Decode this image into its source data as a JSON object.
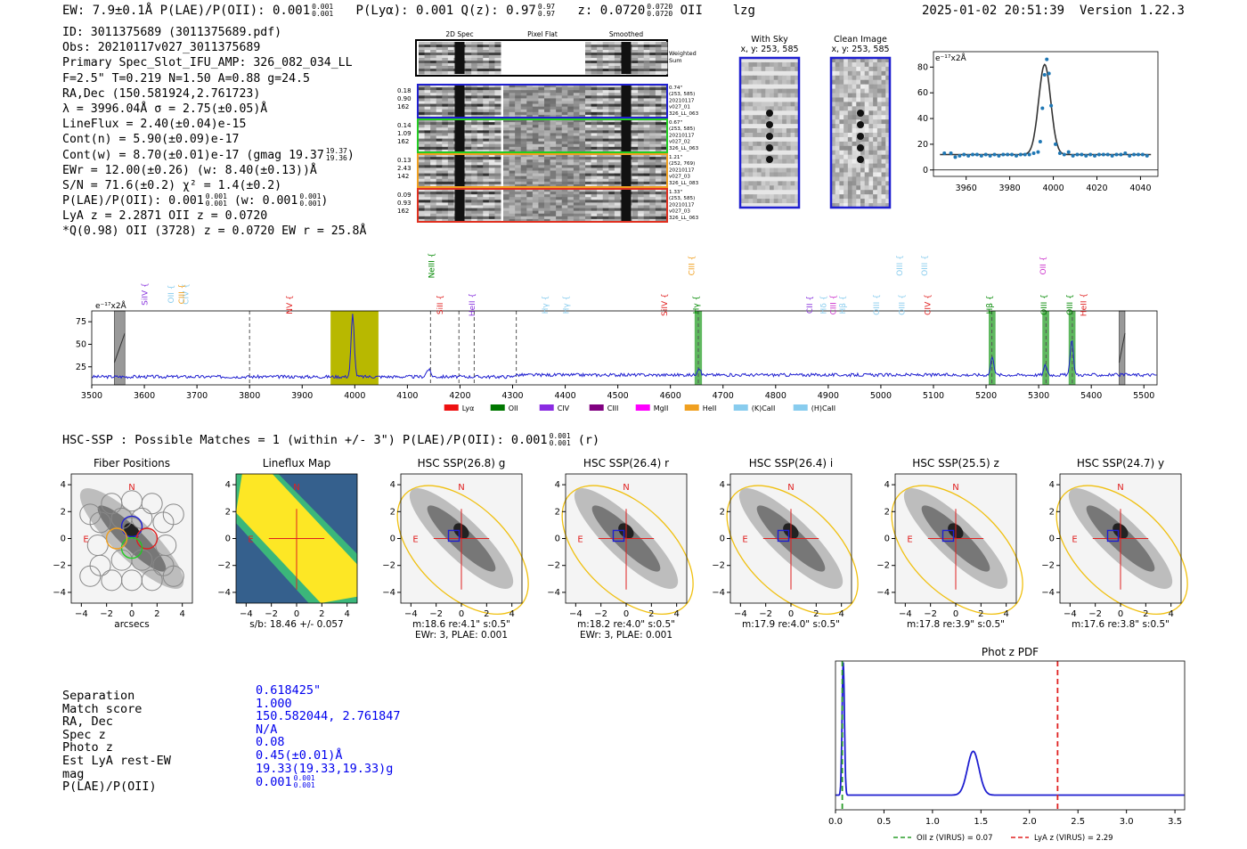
{
  "header": {
    "left": "EW: 7.9±0.1Å  P(LAE)/P(OII): 0.001",
    "left_frac": [
      "0.001",
      "0.001"
    ],
    "pl": "P(Lyα): 0.001  Q(z): 0.97",
    "ql_frac": [
      "0.97",
      "0.97"
    ],
    "z": "z: 0.0720",
    "z_frac": [
      "0.0720",
      "0.0720"
    ],
    "z_tail": "OII    lzg",
    "datetime": "2025-01-02 20:51:39",
    "version": "Version 1.22.3"
  },
  "info": {
    "id": "ID: 3011375689 (3011375689.pdf)",
    "obs": "Obs: 20210117v027_3011375689",
    "primary": "Primary Spec_Slot_IFU_AMP: 326_082_034_LL",
    "f": "F=2.5\"  T=0.219  N=1.50  A=0.88  g=24.5",
    "radec": "RA,Dec (150.581924,2.761723)",
    "lambda": "λ = 3996.04Å  σ = 2.75(±0.05)Å",
    "lineflux": "LineFlux = 2.40(±0.04)e-15",
    "contn": "Cont(n) = 5.90(±0.09)e-17",
    "contw": "Cont(w) = 8.70(±0.01)e-17 (gmag 19.37",
    "contw_frac": [
      "19.37",
      "19.36"
    ],
    "ewr": "EWr = 12.00(±0.26) (w: 8.40(±0.13))Å",
    "sn": "S/N = 71.6(±0.2)  χ² = 1.4(±0.2)",
    "plae": "P(LAE)/P(OII): 0.001",
    "plae_frac": [
      "0.001",
      "0.001"
    ],
    "plae_w": "(w: 0.001",
    "plae_w_frac": [
      "0.001",
      "0.001"
    ],
    "lya": "LyA z = 2.2871  OII z = 0.0720",
    "q": "*Q(0.98) OII (3728) z = 0.0720  EW r = 25.8Å"
  },
  "cutouts": {
    "headers": [
      "2D Spec",
      "Pixel Flat",
      "Smoothed"
    ],
    "weighted_label": "Weighted\nSum",
    "rows": [
      {
        "color": "#1f1fd0",
        "vals": [
          "0.18",
          "0.90",
          "162"
        ],
        "notes": [
          "0.74\"",
          "(253, 585)",
          "20210117",
          "v027_01",
          "326_LL_063"
        ]
      },
      {
        "color": "#22cc22",
        "vals": [
          "0.14",
          "1.09",
          "162"
        ],
        "notes": [
          "0.67\"",
          "(253, 585)",
          "20210117",
          "v027_02",
          "326_LL_063"
        ]
      },
      {
        "color": "#f0a020",
        "vals": [
          "0.13",
          "2.43",
          "142"
        ],
        "notes": [
          "1.21\"",
          "(252, 769)",
          "20210117",
          "v027_03",
          "326_LL_083"
        ]
      },
      {
        "color": "#e03020",
        "vals": [
          "0.09",
          "0.93",
          "162"
        ],
        "notes": [
          "1.33\"",
          "(253, 585)",
          "20210117",
          "v027_03",
          "326_LL_063"
        ]
      }
    ],
    "with_sky": {
      "title": "With Sky",
      "coords": "x, y: 253, 585"
    },
    "clean": {
      "title": "Clean Image",
      "coords": "x, y: 253, 585"
    }
  },
  "chart_data": [
    {
      "type": "line",
      "name": "emission-line-fit",
      "ylabel": "e⁻¹⁷x2Å",
      "xlim": [
        3945,
        4048
      ],
      "ylim": [
        -5,
        92
      ],
      "xticks": [
        3960,
        3980,
        4000,
        4020,
        4040
      ],
      "yticks": [
        0,
        20,
        40,
        60,
        80
      ],
      "points_x": [
        3950,
        3953,
        3955,
        3957,
        3959,
        3961,
        3963,
        3965,
        3967,
        3969,
        3971,
        3973,
        3975,
        3977,
        3979,
        3981,
        3983,
        3985,
        3987,
        3989,
        3991,
        3993,
        3994,
        3995,
        3996,
        3997,
        3998,
        3999,
        4001,
        4003,
        4005,
        4007,
        4009,
        4011,
        4013,
        4015,
        4017,
        4019,
        4021,
        4023,
        4025,
        4027,
        4029,
        4031,
        4033,
        4035,
        4037,
        4039,
        4041,
        4043
      ],
      "points_y": [
        13,
        13,
        10,
        11,
        12,
        11,
        12,
        12,
        11,
        12,
        11,
        12,
        11,
        12,
        12,
        12,
        11,
        12,
        12,
        12,
        13,
        14,
        22,
        48,
        74,
        86,
        75,
        50,
        20,
        13,
        12,
        14,
        11,
        12,
        12,
        11,
        12,
        11,
        12,
        12,
        12,
        11,
        12,
        12,
        13,
        11,
        12,
        12,
        12,
        11
      ],
      "fit_center": 3996.04,
      "fit_sigma": 2.75,
      "fit_amp": 70,
      "fit_cont": 12
    },
    {
      "type": "line",
      "name": "full-spectrum",
      "ylabel": "e⁻¹⁷x2Å",
      "xlim": [
        3500,
        5525
      ],
      "ylim": [
        5,
        87
      ],
      "xticks": [
        3500,
        3600,
        3700,
        3800,
        3900,
        4000,
        4100,
        4200,
        4300,
        4400,
        4500,
        4600,
        4700,
        4800,
        4900,
        5000,
        5100,
        5200,
        5300,
        5400,
        5500
      ],
      "yticks": [
        25,
        50,
        75
      ],
      "peaks": [
        {
          "x": 3996,
          "y": 83,
          "w": 3
        },
        {
          "x": 4654,
          "y": 22,
          "w": 3
        },
        {
          "x": 5212,
          "y": 35,
          "w": 3
        },
        {
          "x": 5313,
          "y": 25,
          "w": 3
        },
        {
          "x": 5363,
          "y": 52,
          "w": 3
        },
        {
          "x": 4140,
          "y": 22,
          "w": 4
        }
      ],
      "continuum": 14,
      "highlight_band": [
        3954,
        4045
      ],
      "green_bands": [
        [
          4646,
          4660
        ],
        [
          5205,
          5218
        ],
        [
          5307,
          5320
        ],
        [
          5357,
          5370
        ]
      ],
      "gray_bands": [
        [
          3543,
          3563
        ],
        [
          5453,
          5464
        ]
      ],
      "dashed_lines": [
        3800,
        4144,
        4198,
        4227,
        4307,
        4653,
        5211,
        5314,
        5364
      ],
      "line_labels": [
        {
          "label": "SiIV",
          "x": 3606,
          "row": 0,
          "color": "#8833dd"
        },
        {
          "label": "OII",
          "x": 3656,
          "row": 0,
          "color": "#88ccee"
        },
        {
          "label": "CIV",
          "x": 3684,
          "row": 0,
          "color": "#88ccee"
        },
        {
          "label": "CIII",
          "x": 3676,
          "row": 0,
          "color": "#f0a020"
        },
        {
          "label": "NV",
          "x": 3881,
          "row": 1,
          "color": "#e02020"
        },
        {
          "label": "NeIII",
          "x": 4151,
          "row": 2,
          "color": "#008800"
        },
        {
          "label": "SiII",
          "x": 4167,
          "row": 1,
          "color": "#e02020"
        },
        {
          "label": "HeII",
          "x": 4228,
          "row": 1,
          "color": "#8833dd"
        },
        {
          "label": "Hγ",
          "x": 4367,
          "row": 1,
          "color": "#88ccee"
        },
        {
          "label": "Hγ",
          "x": 4407,
          "row": 1,
          "color": "#88ccee"
        },
        {
          "label": "SiIV",
          "x": 4594,
          "row": 1,
          "color": "#e02020"
        },
        {
          "label": "CIII",
          "x": 4645,
          "row": 2,
          "color": "#f0a020"
        },
        {
          "label": "Hγ",
          "x": 4654,
          "row": 1,
          "color": "#008800"
        },
        {
          "label": "CII",
          "x": 4870,
          "row": 1,
          "color": "#8833dd"
        },
        {
          "label": "Hδ",
          "x": 4896,
          "row": 1,
          "color": "#88ccee"
        },
        {
          "label": "CIII",
          "x": 4915,
          "row": 1,
          "color": "#cc33cc"
        },
        {
          "label": "Hβ",
          "x": 4932,
          "row": 1,
          "color": "#88ccee"
        },
        {
          "label": "OIII",
          "x": 4997,
          "row": 1,
          "color": "#88ccee"
        },
        {
          "label": "OIII",
          "x": 5045,
          "row": 1,
          "color": "#88ccee"
        },
        {
          "label": "OIII",
          "x": 5041,
          "row": 2,
          "color": "#88ccee"
        },
        {
          "label": "OIII",
          "x": 5088,
          "row": 2,
          "color": "#88ccee"
        },
        {
          "label": "CIV",
          "x": 5094,
          "row": 1,
          "color": "#e02020"
        },
        {
          "label": "Hβ",
          "x": 5212,
          "row": 1,
          "color": "#008800"
        },
        {
          "label": "OII",
          "x": 5313,
          "row": 2,
          "color": "#cc33cc"
        },
        {
          "label": "OIII",
          "x": 5315,
          "row": 1,
          "color": "#008800"
        },
        {
          "label": "OIII",
          "x": 5364,
          "row": 1,
          "color": "#008800"
        },
        {
          "label": "HeII",
          "x": 5390,
          "row": 1,
          "color": "#e02020"
        }
      ],
      "legend": [
        {
          "label": "Lyα",
          "color": "#ee1111"
        },
        {
          "label": "OII",
          "color": "#007700"
        },
        {
          "label": "CIV",
          "color": "#8a2be2"
        },
        {
          "label": "CIII",
          "color": "#800080"
        },
        {
          "label": "MgII",
          "color": "#ff00ff"
        },
        {
          "label": "HeII",
          "color": "#f0a020"
        },
        {
          "label": "(K)CaII",
          "color": "#88ccee"
        },
        {
          "label": "(H)CaII",
          "color": "#88ccee"
        }
      ]
    },
    {
      "type": "line",
      "name": "photz-pdf",
      "title": "Phot z PDF",
      "xlim": [
        0,
        3.6
      ],
      "xticks": [
        0.0,
        0.5,
        1.0,
        1.5,
        2.0,
        2.5,
        3.0,
        3.5
      ],
      "peaks": [
        {
          "x": 0.08,
          "h": 1.0,
          "w": 0.012
        },
        {
          "x": 1.42,
          "h": 0.33,
          "w": 0.06
        }
      ],
      "vlines": [
        {
          "x": 0.07,
          "color": "#2a9d2a"
        },
        {
          "x": 2.29,
          "color": "#e02020"
        }
      ],
      "legend": [
        {
          "label": "OII z (VIRUS) = 0.07",
          "color": "#2a9d2a"
        },
        {
          "label": "LyA z (VIRUS) = 2.29",
          "color": "#e02020"
        }
      ]
    }
  ],
  "hsc": {
    "line": "HSC-SSP : Possible Matches = 1 (within +/- 3\")  P(LAE)/P(OII): 0.001",
    "line_frac": [
      "0.001",
      "0.001"
    ],
    "line_tail": "(r)",
    "ticks": [
      "-4",
      "-2",
      "0",
      "2",
      "4"
    ],
    "panels": [
      {
        "title": "Fiber Positions",
        "caption1": "arcsecs",
        "caption2": "",
        "kind": "fiber"
      },
      {
        "title": "Lineflux Map",
        "caption1": "s/b: 18.46 +/- 0.057",
        "caption2": "",
        "kind": "map"
      },
      {
        "title": "HSC SSP(26.8) g",
        "caption1": "m:18.6  re:4.1\"  s:0.5\"",
        "caption2": "EWr: 3, PLAE: 0.001",
        "kind": "hsc"
      },
      {
        "title": "HSC SSP(26.4) r",
        "caption1": "m:18.2  re:4.0\"  s:0.5\"",
        "caption2": "EWr: 3, PLAE: 0.001",
        "kind": "hsc"
      },
      {
        "title": "HSC SSP(26.4) i",
        "caption1": "m:17.9  re:4.0\"  s:0.5\"",
        "caption2": "",
        "kind": "hsc"
      },
      {
        "title": "HSC SSP(25.5) z",
        "caption1": "m:17.8  re:3.9\"  s:0.5\"",
        "caption2": "",
        "kind": "hsc"
      },
      {
        "title": "HSC SSP(24.7) y",
        "caption1": "m:17.6  re:3.8\"  s:0.5\"",
        "caption2": "",
        "kind": "hsc"
      }
    ],
    "compass_n": "N",
    "compass_e": "E"
  },
  "match": {
    "labels": [
      "Separation",
      "Match score",
      "RA, Dec",
      "Spec z",
      "Photo z",
      "Est LyA rest-EW",
      "mag",
      "P(LAE)/P(OII)"
    ],
    "values": [
      "0.618425\"",
      "1.000",
      "150.582044, 2.761847",
      "N/A",
      "0.08",
      "0.45(±0.01)Å",
      "19.33(19.33,19.33)g",
      "0.001"
    ],
    "plae_frac": [
      "0.001",
      "0.001"
    ]
  }
}
